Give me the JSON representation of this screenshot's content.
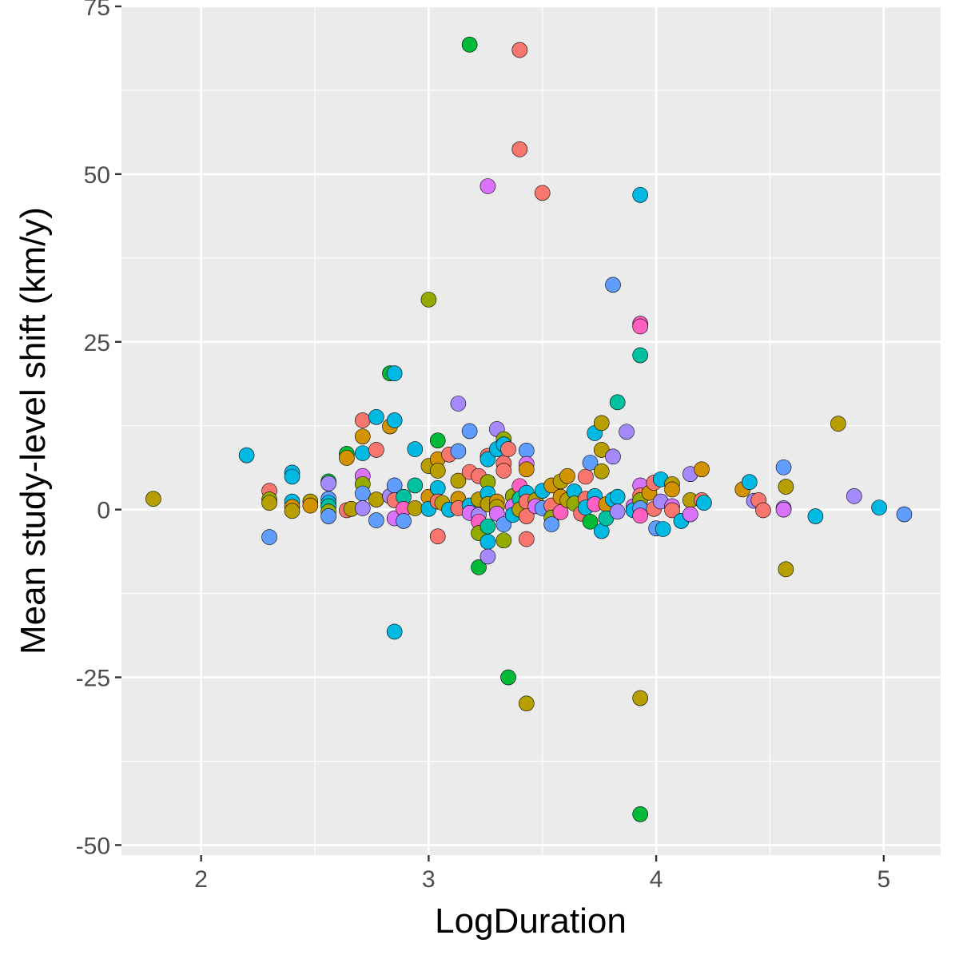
{
  "chart_data": {
    "type": "scatter",
    "title": "",
    "xlabel": "LogDuration",
    "ylabel": "Mean study-level shift (km/y)",
    "xlim": [
      1.65,
      5.25
    ],
    "ylim": [
      -51.5,
      75
    ],
    "xticks": [
      2,
      3,
      4,
      5
    ],
    "yticks": [
      -50,
      -25,
      0,
      25,
      50,
      75
    ],
    "xtick_labels": [
      "2",
      "3",
      "4",
      "5"
    ],
    "ytick_labels": [
      "-50",
      "-25",
      "0",
      "25",
      "50",
      "75"
    ],
    "grid": true,
    "legend": "none",
    "colors": {
      "panel": "#ebebeb",
      "grid": "#ffffff",
      "palette": [
        "#F8766D",
        "#D39200",
        "#B79F00",
        "#93AA00",
        "#00BA38",
        "#00C19F",
        "#00B9E3",
        "#619CFF",
        "#A58AFF",
        "#DB72FB",
        "#FF61C3",
        "#DB8E00"
      ]
    },
    "points": [
      {
        "x": 1.79,
        "y": 1.6,
        "c": 2
      },
      {
        "x": 2.2,
        "y": 8.1,
        "c": 6
      },
      {
        "x": 2.3,
        "y": 2.8,
        "c": 0
      },
      {
        "x": 2.3,
        "y": 1.5,
        "c": 3
      },
      {
        "x": 2.3,
        "y": 1.0,
        "c": 2
      },
      {
        "x": 2.3,
        "y": -4.1,
        "c": 7
      },
      {
        "x": 2.4,
        "y": 5.5,
        "c": 6
      },
      {
        "x": 2.4,
        "y": 4.9,
        "c": 6
      },
      {
        "x": 2.4,
        "y": 1.2,
        "c": 6
      },
      {
        "x": 2.4,
        "y": 0.4,
        "c": 1
      },
      {
        "x": 2.4,
        "y": -0.2,
        "c": 2
      },
      {
        "x": 2.48,
        "y": 1.2,
        "c": 2
      },
      {
        "x": 2.48,
        "y": 0.6,
        "c": 1
      },
      {
        "x": 2.56,
        "y": 4.2,
        "c": 4
      },
      {
        "x": 2.56,
        "y": 3.9,
        "c": 8
      },
      {
        "x": 2.56,
        "y": 1.6,
        "c": 7
      },
      {
        "x": 2.56,
        "y": 1.0,
        "c": 6
      },
      {
        "x": 2.56,
        "y": 0.5,
        "c": 5
      },
      {
        "x": 2.56,
        "y": -0.3,
        "c": 3
      },
      {
        "x": 2.56,
        "y": -1.0,
        "c": 7
      },
      {
        "x": 2.64,
        "y": 8.3,
        "c": 4
      },
      {
        "x": 2.64,
        "y": 7.7,
        "c": 1
      },
      {
        "x": 2.64,
        "y": -0.1,
        "c": 0
      },
      {
        "x": 2.66,
        "y": 0.1,
        "c": 2
      },
      {
        "x": 2.71,
        "y": 13.3,
        "c": 0
      },
      {
        "x": 2.71,
        "y": 10.9,
        "c": 1
      },
      {
        "x": 2.71,
        "y": 8.4,
        "c": 6
      },
      {
        "x": 2.71,
        "y": 5.0,
        "c": 9
      },
      {
        "x": 2.71,
        "y": 3.8,
        "c": 3
      },
      {
        "x": 2.71,
        "y": 2.4,
        "c": 7
      },
      {
        "x": 2.71,
        "y": 0.2,
        "c": 8
      },
      {
        "x": 2.77,
        "y": 13.8,
        "c": 6
      },
      {
        "x": 2.77,
        "y": 8.9,
        "c": 0
      },
      {
        "x": 2.77,
        "y": 1.5,
        "c": 2
      },
      {
        "x": 2.77,
        "y": -1.6,
        "c": 7
      },
      {
        "x": 2.83,
        "y": 20.3,
        "c": 4
      },
      {
        "x": 2.83,
        "y": 12.4,
        "c": 1
      },
      {
        "x": 2.83,
        "y": 2.0,
        "c": 8
      },
      {
        "x": 2.85,
        "y": 20.3,
        "c": 6
      },
      {
        "x": 2.85,
        "y": 13.3,
        "c": 6
      },
      {
        "x": 2.85,
        "y": 3.6,
        "c": 7
      },
      {
        "x": 2.85,
        "y": 1.4,
        "c": 0
      },
      {
        "x": 2.85,
        "y": -1.3,
        "c": 9
      },
      {
        "x": 2.85,
        "y": -18.2,
        "c": 6
      },
      {
        "x": 2.89,
        "y": 1.9,
        "c": 5
      },
      {
        "x": 2.89,
        "y": 0.1,
        "c": 10
      },
      {
        "x": 2.89,
        "y": -1.7,
        "c": 7
      },
      {
        "x": 2.94,
        "y": 9.0,
        "c": 6
      },
      {
        "x": 2.94,
        "y": 3.6,
        "c": 5
      },
      {
        "x": 2.94,
        "y": 0.2,
        "c": 2
      },
      {
        "x": 3.0,
        "y": 31.3,
        "c": 3
      },
      {
        "x": 3.0,
        "y": 6.5,
        "c": 2
      },
      {
        "x": 3.0,
        "y": 1.9,
        "c": 1
      },
      {
        "x": 3.0,
        "y": 0.1,
        "c": 6
      },
      {
        "x": 3.04,
        "y": 10.3,
        "c": 4
      },
      {
        "x": 3.04,
        "y": 7.5,
        "c": 1
      },
      {
        "x": 3.04,
        "y": 5.8,
        "c": 2
      },
      {
        "x": 3.04,
        "y": 3.2,
        "c": 6
      },
      {
        "x": 3.04,
        "y": 1.2,
        "c": 0
      },
      {
        "x": 3.04,
        "y": -4.0,
        "c": 0
      },
      {
        "x": 3.06,
        "y": 1.0,
        "c": 2
      },
      {
        "x": 3.09,
        "y": 8.2,
        "c": 0
      },
      {
        "x": 3.09,
        "y": 0.0,
        "c": 6
      },
      {
        "x": 3.13,
        "y": 15.8,
        "c": 8
      },
      {
        "x": 3.13,
        "y": 8.7,
        "c": 7
      },
      {
        "x": 3.13,
        "y": 4.3,
        "c": 2
      },
      {
        "x": 3.13,
        "y": 1.6,
        "c": 1
      },
      {
        "x": 3.13,
        "y": 0.2,
        "c": 0
      },
      {
        "x": 3.18,
        "y": 69.3,
        "c": 4
      },
      {
        "x": 3.18,
        "y": 11.7,
        "c": 7
      },
      {
        "x": 3.18,
        "y": 5.6,
        "c": 0
      },
      {
        "x": 3.18,
        "y": 0.6,
        "c": 6
      },
      {
        "x": 3.18,
        "y": -0.5,
        "c": 9
      },
      {
        "x": 3.22,
        "y": 5.0,
        "c": 0
      },
      {
        "x": 3.22,
        "y": 1.5,
        "c": 2
      },
      {
        "x": 3.22,
        "y": -0.8,
        "c": 8
      },
      {
        "x": 3.22,
        "y": -1.8,
        "c": 10
      },
      {
        "x": 3.22,
        "y": -3.5,
        "c": 3
      },
      {
        "x": 3.22,
        "y": -8.6,
        "c": 4
      },
      {
        "x": 3.26,
        "y": 48.2,
        "c": 9
      },
      {
        "x": 3.26,
        "y": 8.0,
        "c": 0
      },
      {
        "x": 3.26,
        "y": 7.5,
        "c": 6
      },
      {
        "x": 3.26,
        "y": 4.1,
        "c": 3
      },
      {
        "x": 3.26,
        "y": 2.4,
        "c": 6
      },
      {
        "x": 3.26,
        "y": 0.8,
        "c": 2
      },
      {
        "x": 3.26,
        "y": -2.5,
        "c": 5
      },
      {
        "x": 3.26,
        "y": -4.8,
        "c": 6
      },
      {
        "x": 3.26,
        "y": -7.0,
        "c": 8
      },
      {
        "x": 3.3,
        "y": 12.0,
        "c": 8
      },
      {
        "x": 3.3,
        "y": 9.0,
        "c": 6
      },
      {
        "x": 3.3,
        "y": 1.2,
        "c": 1
      },
      {
        "x": 3.3,
        "y": 0.4,
        "c": 2
      },
      {
        "x": 3.3,
        "y": -0.6,
        "c": 9
      },
      {
        "x": 3.33,
        "y": 10.5,
        "c": 3
      },
      {
        "x": 3.33,
        "y": 9.7,
        "c": 6
      },
      {
        "x": 3.33,
        "y": 6.9,
        "c": 0
      },
      {
        "x": 3.33,
        "y": 5.8,
        "c": 0
      },
      {
        "x": 3.33,
        "y": -2.2,
        "c": 7
      },
      {
        "x": 3.33,
        "y": -4.6,
        "c": 3
      },
      {
        "x": 3.35,
        "y": 9.0,
        "c": 0
      },
      {
        "x": 3.35,
        "y": -25.0,
        "c": 4
      },
      {
        "x": 3.37,
        "y": 2.0,
        "c": 3
      },
      {
        "x": 3.37,
        "y": 0.5,
        "c": 9
      },
      {
        "x": 3.37,
        "y": -0.8,
        "c": 6
      },
      {
        "x": 3.4,
        "y": 68.5,
        "c": 0
      },
      {
        "x": 3.4,
        "y": 53.7,
        "c": 0
      },
      {
        "x": 3.4,
        "y": 3.5,
        "c": 10
      },
      {
        "x": 3.4,
        "y": 1.6,
        "c": 5
      },
      {
        "x": 3.4,
        "y": 0.0,
        "c": 2
      },
      {
        "x": 3.43,
        "y": 8.8,
        "c": 7
      },
      {
        "x": 3.43,
        "y": 6.8,
        "c": 9
      },
      {
        "x": 3.43,
        "y": 6.0,
        "c": 1
      },
      {
        "x": 3.43,
        "y": 2.5,
        "c": 6
      },
      {
        "x": 3.43,
        "y": 1.2,
        "c": 0
      },
      {
        "x": 3.43,
        "y": -1.0,
        "c": 0
      },
      {
        "x": 3.43,
        "y": -4.4,
        "c": 0
      },
      {
        "x": 3.43,
        "y": -28.9,
        "c": 2
      },
      {
        "x": 3.47,
        "y": 1.4,
        "c": 2
      },
      {
        "x": 3.47,
        "y": 0.5,
        "c": 9
      },
      {
        "x": 3.5,
        "y": 47.2,
        "c": 0
      },
      {
        "x": 3.5,
        "y": 2.8,
        "c": 6
      },
      {
        "x": 3.5,
        "y": 0.2,
        "c": 7
      },
      {
        "x": 3.54,
        "y": 3.6,
        "c": 1
      },
      {
        "x": 3.54,
        "y": 0.6,
        "c": 0
      },
      {
        "x": 3.54,
        "y": -1.2,
        "c": 3
      },
      {
        "x": 3.54,
        "y": -2.2,
        "c": 7
      },
      {
        "x": 3.58,
        "y": 4.2,
        "c": 2
      },
      {
        "x": 3.58,
        "y": 1.9,
        "c": 1
      },
      {
        "x": 3.58,
        "y": -0.4,
        "c": 10
      },
      {
        "x": 3.61,
        "y": 5.0,
        "c": 1
      },
      {
        "x": 3.61,
        "y": 1.4,
        "c": 2
      },
      {
        "x": 3.64,
        "y": 2.7,
        "c": 6
      },
      {
        "x": 3.64,
        "y": 0.9,
        "c": 3
      },
      {
        "x": 3.67,
        "y": -0.6,
        "c": 0
      },
      {
        "x": 3.69,
        "y": 4.9,
        "c": 0
      },
      {
        "x": 3.69,
        "y": 1.6,
        "c": 0
      },
      {
        "x": 3.69,
        "y": 0.3,
        "c": 6
      },
      {
        "x": 3.71,
        "y": 7.0,
        "c": 7
      },
      {
        "x": 3.71,
        "y": -1.8,
        "c": 4
      },
      {
        "x": 3.73,
        "y": 11.4,
        "c": 6
      },
      {
        "x": 3.73,
        "y": 2.0,
        "c": 6
      },
      {
        "x": 3.73,
        "y": 0.8,
        "c": 10
      },
      {
        "x": 3.76,
        "y": 12.9,
        "c": 2
      },
      {
        "x": 3.76,
        "y": 8.9,
        "c": 2
      },
      {
        "x": 3.76,
        "y": 5.7,
        "c": 2
      },
      {
        "x": 3.76,
        "y": -3.2,
        "c": 6
      },
      {
        "x": 3.78,
        "y": 0.8,
        "c": 1
      },
      {
        "x": 3.78,
        "y": -1.3,
        "c": 5
      },
      {
        "x": 3.81,
        "y": 33.5,
        "c": 7
      },
      {
        "x": 3.81,
        "y": 7.9,
        "c": 8
      },
      {
        "x": 3.81,
        "y": 1.5,
        "c": 6
      },
      {
        "x": 3.83,
        "y": 16.0,
        "c": 5
      },
      {
        "x": 3.83,
        "y": 1.9,
        "c": 6
      },
      {
        "x": 3.83,
        "y": -0.3,
        "c": 8
      },
      {
        "x": 3.87,
        "y": 11.6,
        "c": 8
      },
      {
        "x": 3.9,
        "y": 0.5,
        "c": 9
      },
      {
        "x": 3.9,
        "y": -0.1,
        "c": 6
      },
      {
        "x": 3.93,
        "y": 46.9,
        "c": 6
      },
      {
        "x": 3.93,
        "y": 27.7,
        "c": 10
      },
      {
        "x": 3.93,
        "y": 27.3,
        "c": 10
      },
      {
        "x": 3.93,
        "y": 23.0,
        "c": 5
      },
      {
        "x": 3.93,
        "y": 3.6,
        "c": 9
      },
      {
        "x": 3.93,
        "y": 2.1,
        "c": 0
      },
      {
        "x": 3.93,
        "y": 1.4,
        "c": 3
      },
      {
        "x": 3.93,
        "y": 0.2,
        "c": 7
      },
      {
        "x": 3.93,
        "y": -0.9,
        "c": 10
      },
      {
        "x": 3.93,
        "y": -28.1,
        "c": 2
      },
      {
        "x": 3.93,
        "y": -45.4,
        "c": 4
      },
      {
        "x": 3.97,
        "y": 2.5,
        "c": 1
      },
      {
        "x": 3.99,
        "y": 4.0,
        "c": 0
      },
      {
        "x": 3.99,
        "y": 0.1,
        "c": 0
      },
      {
        "x": 4.0,
        "y": -2.8,
        "c": 7
      },
      {
        "x": 4.02,
        "y": 4.5,
        "c": 6
      },
      {
        "x": 4.02,
        "y": 1.2,
        "c": 8
      },
      {
        "x": 4.03,
        "y": -2.9,
        "c": 6
      },
      {
        "x": 4.07,
        "y": 3.8,
        "c": 2
      },
      {
        "x": 4.07,
        "y": 3.0,
        "c": 1
      },
      {
        "x": 4.07,
        "y": 0.5,
        "c": 9
      },
      {
        "x": 4.07,
        "y": -0.1,
        "c": 0
      },
      {
        "x": 4.11,
        "y": -1.7,
        "c": 6
      },
      {
        "x": 4.15,
        "y": 5.3,
        "c": 8
      },
      {
        "x": 4.15,
        "y": 1.4,
        "c": 2
      },
      {
        "x": 4.15,
        "y": -0.7,
        "c": 9
      },
      {
        "x": 4.2,
        "y": 6.0,
        "c": 1
      },
      {
        "x": 4.2,
        "y": 1.4,
        "c": 0
      },
      {
        "x": 4.21,
        "y": 1.0,
        "c": 6
      },
      {
        "x": 4.38,
        "y": 3.0,
        "c": 1
      },
      {
        "x": 4.41,
        "y": 4.1,
        "c": 6
      },
      {
        "x": 4.43,
        "y": 1.3,
        "c": 8
      },
      {
        "x": 4.45,
        "y": 1.4,
        "c": 0
      },
      {
        "x": 4.47,
        "y": -0.1,
        "c": 0
      },
      {
        "x": 4.56,
        "y": 6.3,
        "c": 7
      },
      {
        "x": 4.56,
        "y": 0.2,
        "c": 8
      },
      {
        "x": 4.56,
        "y": 0.0,
        "c": 9
      },
      {
        "x": 4.57,
        "y": 3.4,
        "c": 2
      },
      {
        "x": 4.57,
        "y": -8.9,
        "c": 2
      },
      {
        "x": 4.7,
        "y": -1.0,
        "c": 6
      },
      {
        "x": 4.8,
        "y": 12.8,
        "c": 2
      },
      {
        "x": 4.87,
        "y": 2.0,
        "c": 8
      },
      {
        "x": 4.98,
        "y": 0.3,
        "c": 6
      },
      {
        "x": 5.09,
        "y": -0.7,
        "c": 7
      }
    ]
  }
}
